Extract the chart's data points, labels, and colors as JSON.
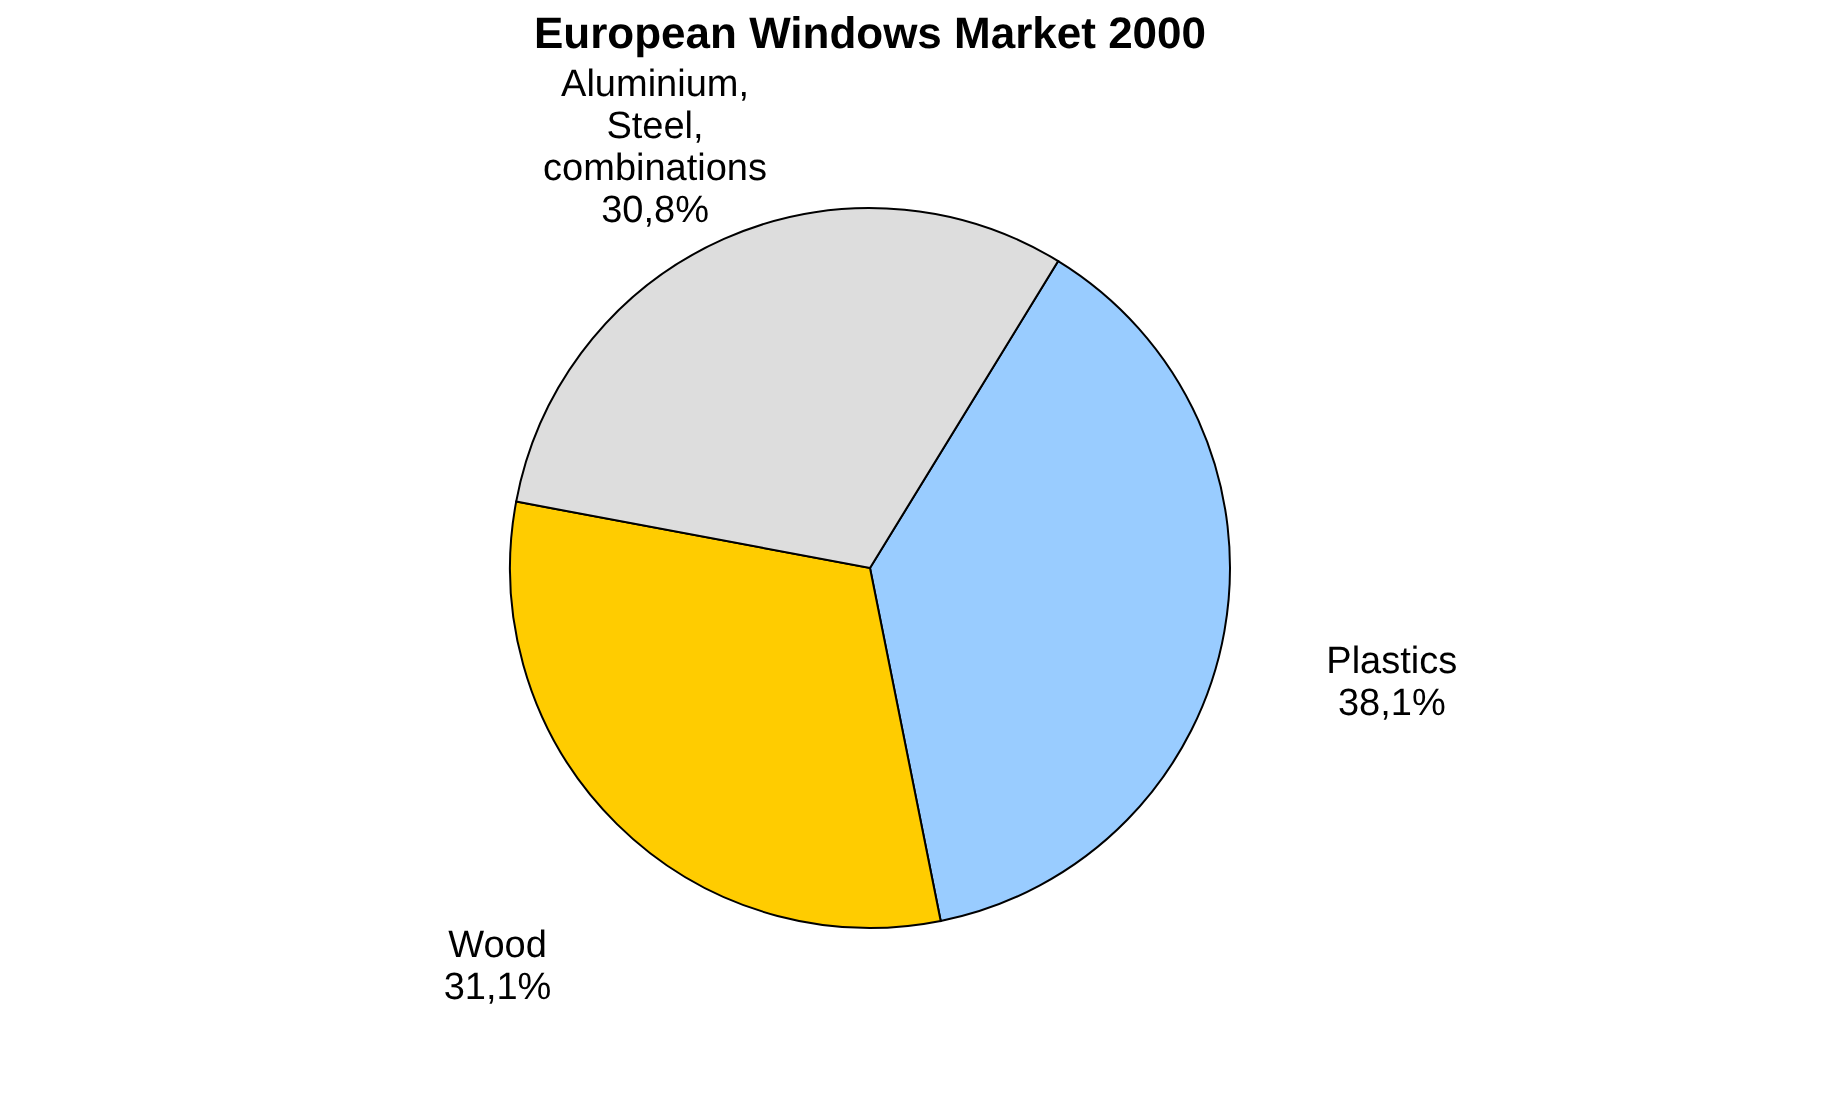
{
  "chart_data": {
    "type": "pie",
    "title": "European Windows Market 2000",
    "categories": [
      "Plastics",
      "Wood",
      "Aluminium, Steel, combinations"
    ],
    "values": [
      38.1,
      31.1,
      30.8
    ],
    "value_labels": [
      "38,1%",
      "31,1%",
      "30,8%"
    ],
    "colors": [
      "#99ccff",
      "#ffcc00",
      "#dddddd"
    ],
    "legend": false
  }
}
